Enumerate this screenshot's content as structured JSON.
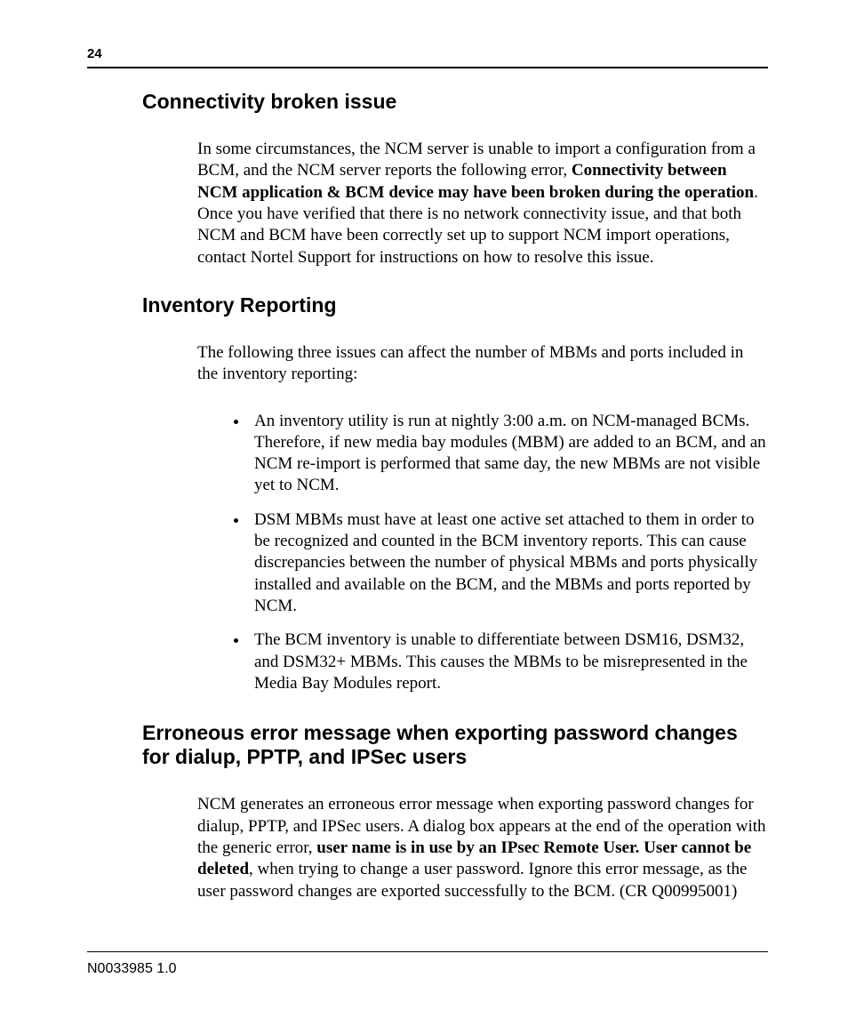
{
  "page_number": "24",
  "doc_id": "N0033985 1.0",
  "section1": {
    "heading": "Connectivity broken issue",
    "para_pre": "In some circumstances, the NCM server is unable to import a configuration from a BCM, and the NCM server reports the following error, ",
    "para_bold": "Connectivity between NCM application & BCM device may have been broken during the operation",
    "para_post": ". Once you have verified that there is no network connectivity issue, and that both NCM and BCM have been correctly set up to support NCM import operations, contact Nortel Support for instructions on how to resolve this issue."
  },
  "section2": {
    "heading": "Inventory Reporting",
    "intro": "The following three issues can affect the number of MBMs and ports included in the inventory reporting:",
    "bullets": [
      "An inventory utility is run at nightly 3:00 a.m. on NCM-managed BCMs. Therefore, if new media bay modules (MBM) are added to an BCM, and an NCM re-import is performed that same day, the new MBMs are not visible yet to NCM.",
      "DSM MBMs must have at least one active set attached to them in order to be recognized and counted in the BCM inventory reports. This can cause discrepancies between the number of physical MBMs and ports physically installed and available on the BCM, and the MBMs and ports reported by NCM.",
      "The BCM inventory is unable to differentiate between DSM16, DSM32, and DSM32+ MBMs. This causes the MBMs to be misrepresented in the Media Bay Modules report."
    ]
  },
  "section3": {
    "heading": "Erroneous error message when exporting password changes for dialup, PPTP, and IPSec users",
    "para_pre": "NCM generates an erroneous error message when exporting password changes for dialup, PPTP, and IPSec users. A dialog box appears at the end of the operation with the generic error, ",
    "para_bold": "user name is in use by an IPsec Remote User. User cannot be deleted",
    "para_post": ", when trying to change a user password. Ignore this error message, as the user password changes are exported successfully to the BCM. (CR Q00995001)"
  }
}
